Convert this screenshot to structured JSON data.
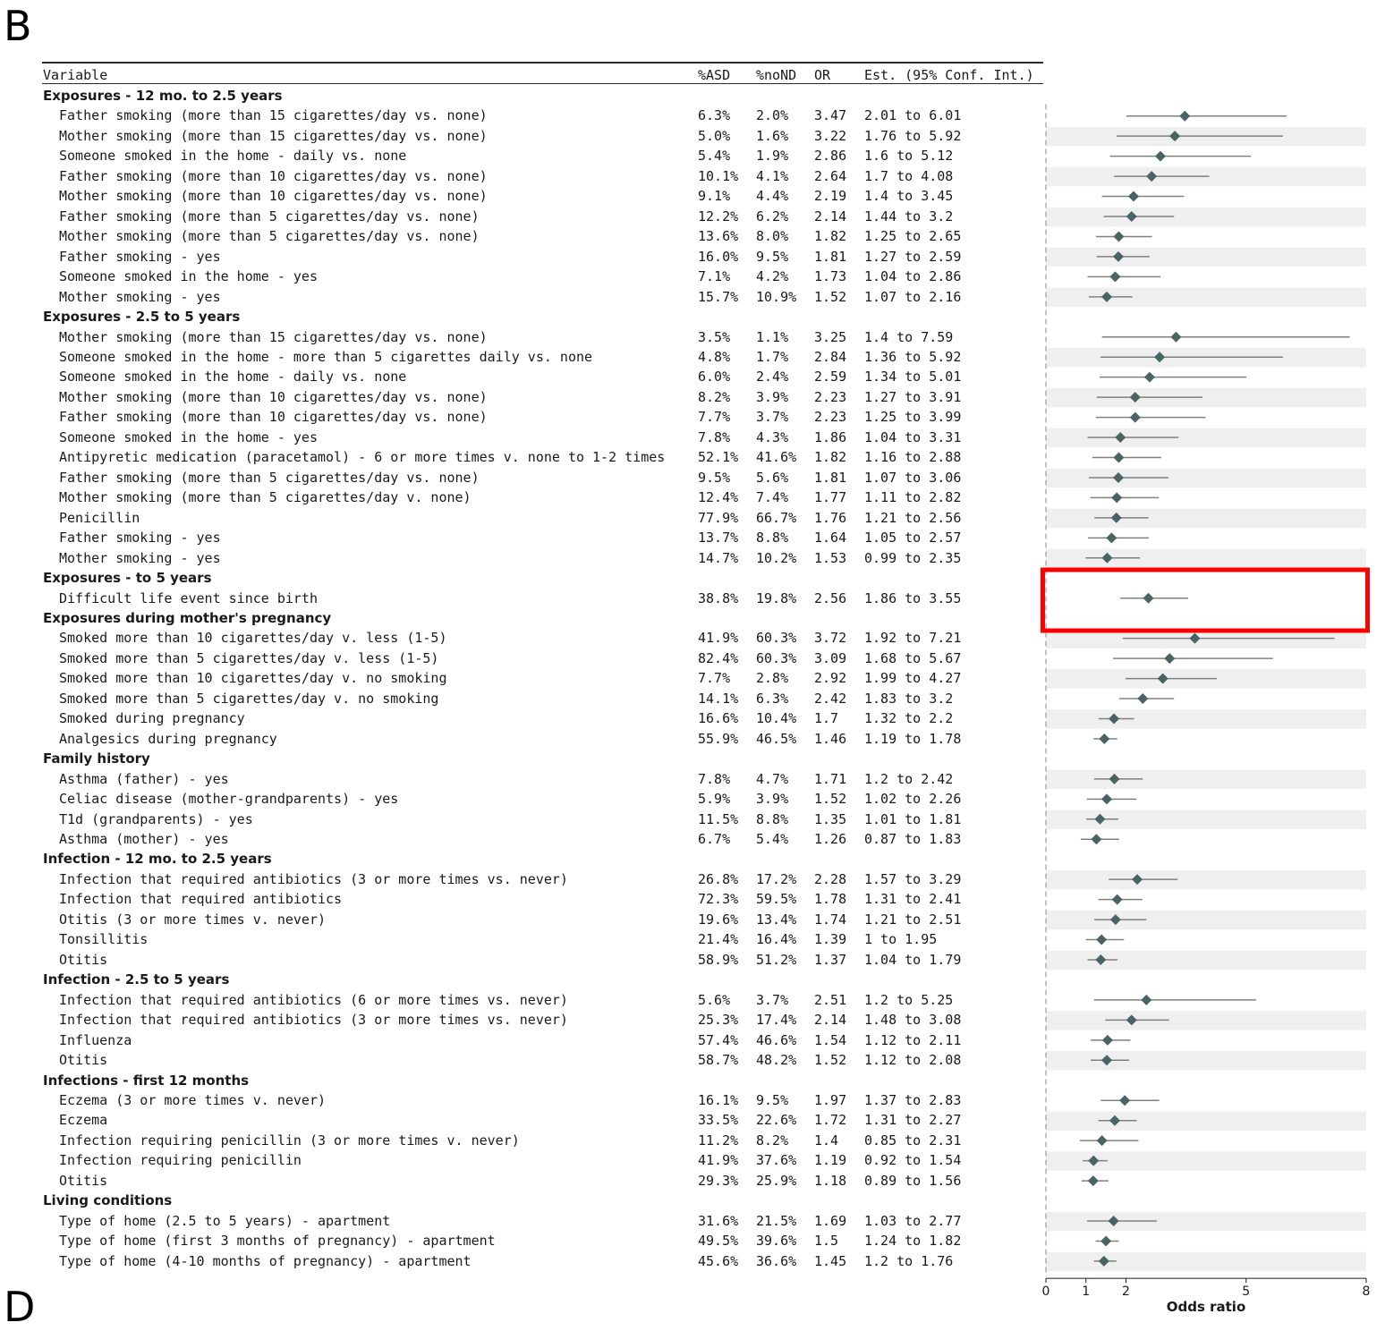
{
  "panel_letters": {
    "top": "B",
    "bottom": "D"
  },
  "columns": {
    "variable": "Variable",
    "asd": "%ASD",
    "nond": "%noND",
    "or": "OR",
    "ci": "Est. (95% Conf. Int.)"
  },
  "colors": {
    "marker": "#4a6363",
    "ci_line": "#808080",
    "band": "#efefef",
    "highlight": "#ff0000",
    "ref_line": "#888888"
  },
  "highlighted_row": "Difficult life event since birth",
  "chart_data": {
    "type": "forest",
    "xlabel": "Odds ratio",
    "x_ticks": [
      "0",
      "1",
      "2",
      "5",
      "8"
    ],
    "x_tick_values": [
      0,
      1,
      2,
      5,
      8
    ],
    "reference_line": 0,
    "sections": [
      {
        "label": "Exposures - 12 mo. to 2.5 years",
        "rows": [
          {
            "variable": "Father smoking (more than 15 cigarettes/day vs. none)",
            "asd": "6.3%",
            "nond": "2.0%",
            "or": "3.47",
            "ci": "2.01 to 6.01"
          },
          {
            "variable": "Mother smoking (more than 15 cigarettes/day vs. none)",
            "asd": "5.0%",
            "nond": "1.6%",
            "or": "3.22",
            "ci": "1.76 to 5.92"
          },
          {
            "variable": "Someone smoked in the home - daily vs. none",
            "asd": "5.4%",
            "nond": "1.9%",
            "or": "2.86",
            "ci": "1.6 to 5.12"
          },
          {
            "variable": "Father smoking (more than 10 cigarettes/day vs. none)",
            "asd": "10.1%",
            "nond": "4.1%",
            "or": "2.64",
            "ci": "1.7 to 4.08"
          },
          {
            "variable": "Mother smoking (more than 10 cigarettes/day vs. none)",
            "asd": "9.1%",
            "nond": "4.4%",
            "or": "2.19",
            "ci": "1.4 to 3.45"
          },
          {
            "variable": "Father smoking (more than 5 cigarettes/day vs. none)",
            "asd": "12.2%",
            "nond": "6.2%",
            "or": "2.14",
            "ci": "1.44 to 3.2"
          },
          {
            "variable": "Mother smoking (more than 5 cigarettes/day vs. none)",
            "asd": "13.6%",
            "nond": "8.0%",
            "or": "1.82",
            "ci": "1.25 to 2.65"
          },
          {
            "variable": "Father smoking - yes",
            "asd": "16.0%",
            "nond": "9.5%",
            "or": "1.81",
            "ci": "1.27 to 2.59"
          },
          {
            "variable": "Someone smoked in the home - yes",
            "asd": "7.1%",
            "nond": "4.2%",
            "or": "1.73",
            "ci": "1.04 to 2.86"
          },
          {
            "variable": "Mother smoking - yes",
            "asd": "15.7%",
            "nond": "10.9%",
            "or": "1.52",
            "ci": "1.07 to 2.16"
          }
        ]
      },
      {
        "label": "Exposures - 2.5 to 5 years",
        "rows": [
          {
            "variable": "Mother smoking (more than 15 cigarettes/day vs. none)",
            "asd": "3.5%",
            "nond": "1.1%",
            "or": "3.25",
            "ci": "1.4 to 7.59"
          },
          {
            "variable": "Someone smoked in the home - more than 5 cigarettes daily vs. none",
            "asd": "4.8%",
            "nond": "1.7%",
            "or": "2.84",
            "ci": "1.36 to 5.92"
          },
          {
            "variable": "Someone smoked in the home - daily vs. none",
            "asd": "6.0%",
            "nond": "2.4%",
            "or": "2.59",
            "ci": "1.34 to 5.01"
          },
          {
            "variable": "Mother smoking (more than 10 cigarettes/day vs. none)",
            "asd": "8.2%",
            "nond": "3.9%",
            "or": "2.23",
            "ci": "1.27 to 3.91"
          },
          {
            "variable": "Father smoking (more than 10 cigarettes/day vs. none)",
            "asd": "7.7%",
            "nond": "3.7%",
            "or": "2.23",
            "ci": "1.25 to 3.99"
          },
          {
            "variable": "Someone smoked in the home - yes",
            "asd": "7.8%",
            "nond": "4.3%",
            "or": "1.86",
            "ci": "1.04 to 3.31"
          },
          {
            "variable": "Antipyretic medication (paracetamol) - 6 or more times v. none to 1-2 times",
            "asd": "52.1%",
            "nond": "41.6%",
            "or": "1.82",
            "ci": "1.16 to 2.88"
          },
          {
            "variable": "Father smoking (more than 5 cigarettes/day vs. none)",
            "asd": "9.5%",
            "nond": "5.6%",
            "or": "1.81",
            "ci": "1.07 to 3.06"
          },
          {
            "variable": "Mother smoking (more than 5 cigarettes/day v. none)",
            "asd": "12.4%",
            "nond": "7.4%",
            "or": "1.77",
            "ci": "1.11 to 2.82"
          },
          {
            "variable": "Penicillin",
            "asd": "77.9%",
            "nond": "66.7%",
            "or": "1.76",
            "ci": "1.21 to 2.56"
          },
          {
            "variable": "Father smoking - yes",
            "asd": "13.7%",
            "nond": "8.8%",
            "or": "1.64",
            "ci": "1.05 to 2.57"
          },
          {
            "variable": "Mother smoking - yes",
            "asd": "14.7%",
            "nond": "10.2%",
            "or": "1.53",
            "ci": "0.99 to 2.35"
          }
        ]
      },
      {
        "label": "Exposures - to 5 years",
        "rows": [
          {
            "variable": "Difficult life event since birth",
            "asd": "38.8%",
            "nond": "19.8%",
            "or": "2.56",
            "ci": "1.86 to 3.55"
          }
        ]
      },
      {
        "label": "Exposures during mother's pregnancy",
        "rows": [
          {
            "variable": "Smoked more than 10 cigarettes/day v. less (1-5)",
            "asd": "41.9%",
            "nond": "60.3%",
            "or": "3.72",
            "ci": "1.92 to 7.21"
          },
          {
            "variable": "Smoked more than 5 cigarettes/day v. less (1-5)",
            "asd": "82.4%",
            "nond": "60.3%",
            "or": "3.09",
            "ci": "1.68 to 5.67"
          },
          {
            "variable": "Smoked more than 10 cigarettes/day v. no smoking",
            "asd": "7.7%",
            "nond": "2.8%",
            "or": "2.92",
            "ci": "1.99 to 4.27"
          },
          {
            "variable": "Smoked more than 5 cigarettes/day v. no smoking",
            "asd": "14.1%",
            "nond": "6.3%",
            "or": "2.42",
            "ci": "1.83 to 3.2"
          },
          {
            "variable": "Smoked during pregnancy",
            "asd": "16.6%",
            "nond": "10.4%",
            "or": "1.7",
            "ci": "1.32 to 2.2"
          },
          {
            "variable": "Analgesics during pregnancy",
            "asd": "55.9%",
            "nond": "46.5%",
            "or": "1.46",
            "ci": "1.19 to 1.78"
          }
        ]
      },
      {
        "label": "Family history",
        "rows": [
          {
            "variable": "Asthma (father) - yes",
            "asd": "7.8%",
            "nond": "4.7%",
            "or": "1.71",
            "ci": "1.2 to 2.42"
          },
          {
            "variable": "Celiac disease (mother-grandparents) - yes",
            "asd": "5.9%",
            "nond": "3.9%",
            "or": "1.52",
            "ci": "1.02 to 2.26"
          },
          {
            "variable": "T1d (grandparents) - yes",
            "asd": "11.5%",
            "nond": "8.8%",
            "or": "1.35",
            "ci": "1.01 to 1.81"
          },
          {
            "variable": "Asthma (mother) - yes",
            "asd": "6.7%",
            "nond": "5.4%",
            "or": "1.26",
            "ci": "0.87 to 1.83"
          }
        ]
      },
      {
        "label": "Infection - 12 mo. to 2.5 years",
        "rows": [
          {
            "variable": "Infection that required antibiotics (3 or more times vs. never)",
            "asd": "26.8%",
            "nond": "17.2%",
            "or": "2.28",
            "ci": "1.57 to 3.29"
          },
          {
            "variable": "Infection that required antibiotics",
            "asd": "72.3%",
            "nond": "59.5%",
            "or": "1.78",
            "ci": "1.31 to 2.41"
          },
          {
            "variable": "Otitis (3 or more times v. never)",
            "asd": "19.6%",
            "nond": "13.4%",
            "or": "1.74",
            "ci": "1.21 to 2.51"
          },
          {
            "variable": "Tonsillitis",
            "asd": "21.4%",
            "nond": "16.4%",
            "or": "1.39",
            "ci": "1 to 1.95"
          },
          {
            "variable": "Otitis",
            "asd": "58.9%",
            "nond": "51.2%",
            "or": "1.37",
            "ci": "1.04 to 1.79"
          }
        ]
      },
      {
        "label": "Infection - 2.5 to 5 years",
        "rows": [
          {
            "variable": "Infection that required antibiotics (6 or more times vs. never)",
            "asd": "5.6%",
            "nond": "3.7%",
            "or": "2.51",
            "ci": "1.2 to 5.25"
          },
          {
            "variable": "Infection that required antibiotics (3 or more times vs. never)",
            "asd": "25.3%",
            "nond": "17.4%",
            "or": "2.14",
            "ci": "1.48 to 3.08"
          },
          {
            "variable": "Influenza",
            "asd": "57.4%",
            "nond": "46.6%",
            "or": "1.54",
            "ci": "1.12 to 2.11"
          },
          {
            "variable": "Otitis",
            "asd": "58.7%",
            "nond": "48.2%",
            "or": "1.52",
            "ci": "1.12 to 2.08"
          }
        ]
      },
      {
        "label": "Infections - first 12 months",
        "rows": [
          {
            "variable": "Eczema (3 or more times v. never)",
            "asd": "16.1%",
            "nond": "9.5%",
            "or": "1.97",
            "ci": "1.37 to 2.83"
          },
          {
            "variable": "Eczema",
            "asd": "33.5%",
            "nond": "22.6%",
            "or": "1.72",
            "ci": "1.31 to 2.27"
          },
          {
            "variable": "Infection requiring penicillin (3 or more times v. never)",
            "asd": "11.2%",
            "nond": "8.2%",
            "or": "1.4",
            "ci": "0.85 to 2.31"
          },
          {
            "variable": "Infection requiring penicillin",
            "asd": "41.9%",
            "nond": "37.6%",
            "or": "1.19",
            "ci": "0.92 to 1.54"
          },
          {
            "variable": "Otitis",
            "asd": "29.3%",
            "nond": "25.9%",
            "or": "1.18",
            "ci": "0.89 to 1.56"
          }
        ]
      },
      {
        "label": "Living conditions",
        "rows": [
          {
            "variable": "Type of home (2.5 to 5 years) - apartment",
            "asd": "31.6%",
            "nond": "21.5%",
            "or": "1.69",
            "ci": "1.03 to 2.77"
          },
          {
            "variable": "Type of home (first 3 months of pregnancy) - apartment",
            "asd": "49.5%",
            "nond": "39.6%",
            "or": "1.5",
            "ci": "1.24 to 1.82"
          },
          {
            "variable": "Type of home (4-10 months of pregnancy) - apartment",
            "asd": "45.6%",
            "nond": "36.6%",
            "or": "1.45",
            "ci": "1.2 to 1.76"
          }
        ]
      }
    ]
  }
}
